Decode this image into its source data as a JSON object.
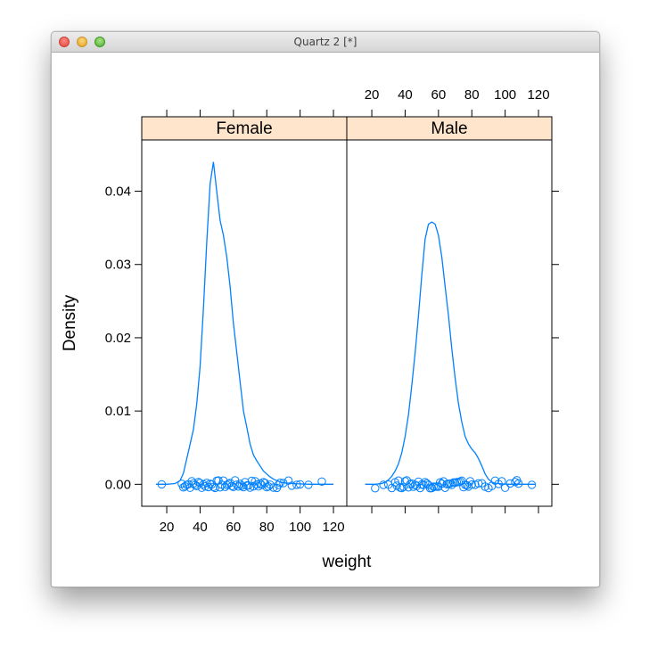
{
  "window": {
    "title": "Quartz 2 [*]"
  },
  "chart_data": {
    "type": "line",
    "xlabel": "weight",
    "ylabel": "Density",
    "xlim": [
      5,
      128
    ],
    "ylim": [
      -0.003,
      0.047
    ],
    "x_ticks": [
      20,
      40,
      60,
      80,
      100,
      120
    ],
    "y_ticks": [
      0.0,
      0.01,
      0.02,
      0.03,
      0.04
    ],
    "y_tick_labels": [
      "0.00",
      "0.01",
      "0.02",
      "0.03",
      "0.04"
    ],
    "strip_color": "#ffe5cc",
    "line_color": "#0080ff",
    "panels": [
      {
        "name": "Female",
        "density": {
          "x": [
            13.5,
            20,
            25,
            28,
            30,
            33,
            36,
            38,
            40,
            42,
            44,
            46,
            48,
            50,
            52,
            54,
            56,
            58,
            60,
            62,
            64,
            66,
            68,
            70,
            72,
            74,
            76,
            78,
            80,
            82,
            84,
            86,
            88,
            90,
            95,
            100,
            105,
            110,
            115,
            120
          ],
          "y": [
            0.0,
            0.0,
            0.0001,
            0.0005,
            0.0015,
            0.0045,
            0.0075,
            0.011,
            0.016,
            0.024,
            0.033,
            0.041,
            0.044,
            0.04,
            0.036,
            0.034,
            0.031,
            0.027,
            0.022,
            0.018,
            0.014,
            0.01,
            0.0078,
            0.0055,
            0.004,
            0.0032,
            0.0025,
            0.0018,
            0.0014,
            0.001,
            0.0007,
            0.0005,
            0.00035,
            0.0002,
            0.0001,
            5e-05,
            0.0,
            0.0,
            0.0,
            0.0
          ]
        },
        "points": [
          17,
          29,
          30,
          31,
          32,
          33,
          34,
          35,
          36,
          37,
          38,
          39,
          40,
          41,
          42,
          43,
          44,
          45,
          46,
          47,
          48,
          49,
          50,
          51,
          52,
          53,
          54,
          55,
          56,
          57,
          58,
          59,
          60,
          61,
          62,
          63,
          64,
          65,
          66,
          67,
          68,
          69,
          70,
          71,
          72,
          73,
          74,
          75,
          76,
          77,
          78,
          79,
          80,
          81,
          82,
          84,
          86,
          87,
          88,
          90,
          93,
          95,
          98,
          100,
          105,
          113
        ]
      },
      {
        "name": "Male",
        "density": {
          "x": [
            16,
            22,
            26,
            28,
            30,
            32,
            34,
            36,
            38,
            40,
            42,
            44,
            46,
            48,
            50,
            52,
            54,
            56,
            58,
            60,
            62,
            64,
            66,
            68,
            70,
            72,
            74,
            76,
            78,
            80,
            82,
            84,
            86,
            88,
            90,
            92,
            94,
            98,
            102,
            110,
            118
          ],
          "y": [
            0.0,
            0.0,
            0.0001,
            0.0003,
            0.0006,
            0.0011,
            0.0018,
            0.0028,
            0.0043,
            0.0065,
            0.0095,
            0.0135,
            0.018,
            0.023,
            0.0285,
            0.0335,
            0.0355,
            0.0358,
            0.0355,
            0.034,
            0.031,
            0.027,
            0.023,
            0.0185,
            0.0145,
            0.011,
            0.0085,
            0.0065,
            0.0055,
            0.0048,
            0.0043,
            0.0035,
            0.0025,
            0.0014,
            0.0007,
            0.0003,
            0.00015,
            5e-05,
            0.0,
            0.0,
            0.0
          ]
        },
        "points": [
          22,
          27,
          30,
          32,
          34,
          35,
          36,
          37,
          38,
          39,
          40,
          41,
          42,
          43,
          44,
          45,
          46,
          47,
          48,
          49,
          50,
          51,
          52,
          53,
          54,
          55,
          56,
          57,
          58,
          59,
          60,
          61,
          62,
          63,
          64,
          65,
          66,
          67,
          68,
          69,
          70,
          71,
          72,
          73,
          74,
          75,
          76,
          77,
          78,
          79,
          80,
          82,
          84,
          86,
          88,
          90,
          92,
          94,
          96,
          98,
          100,
          103,
          106,
          107,
          108,
          116
        ]
      }
    ]
  }
}
